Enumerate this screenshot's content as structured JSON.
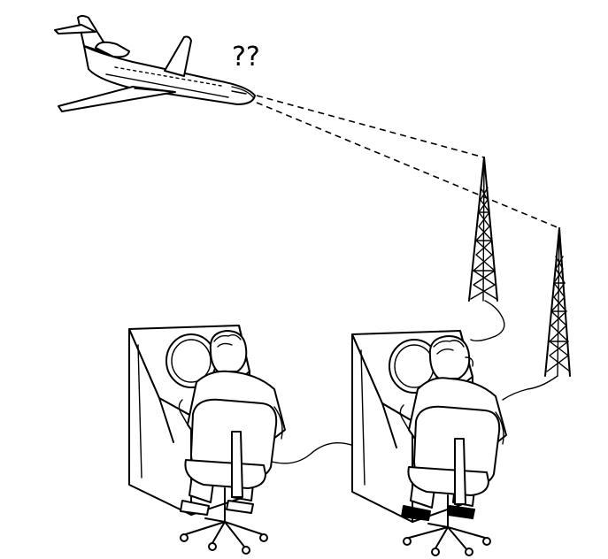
{
  "annotation": {
    "confusion_text": "??"
  },
  "icons": {
    "airplane": "airplane-icon",
    "radio_tower": "radio-tower-icon",
    "radar_console": "radar-console-icon",
    "controller": "air-traffic-controller-icon",
    "office_chair": "office-chair-icon"
  },
  "style": {
    "ink_color": "#000000",
    "paper_color": "#ffffff"
  }
}
